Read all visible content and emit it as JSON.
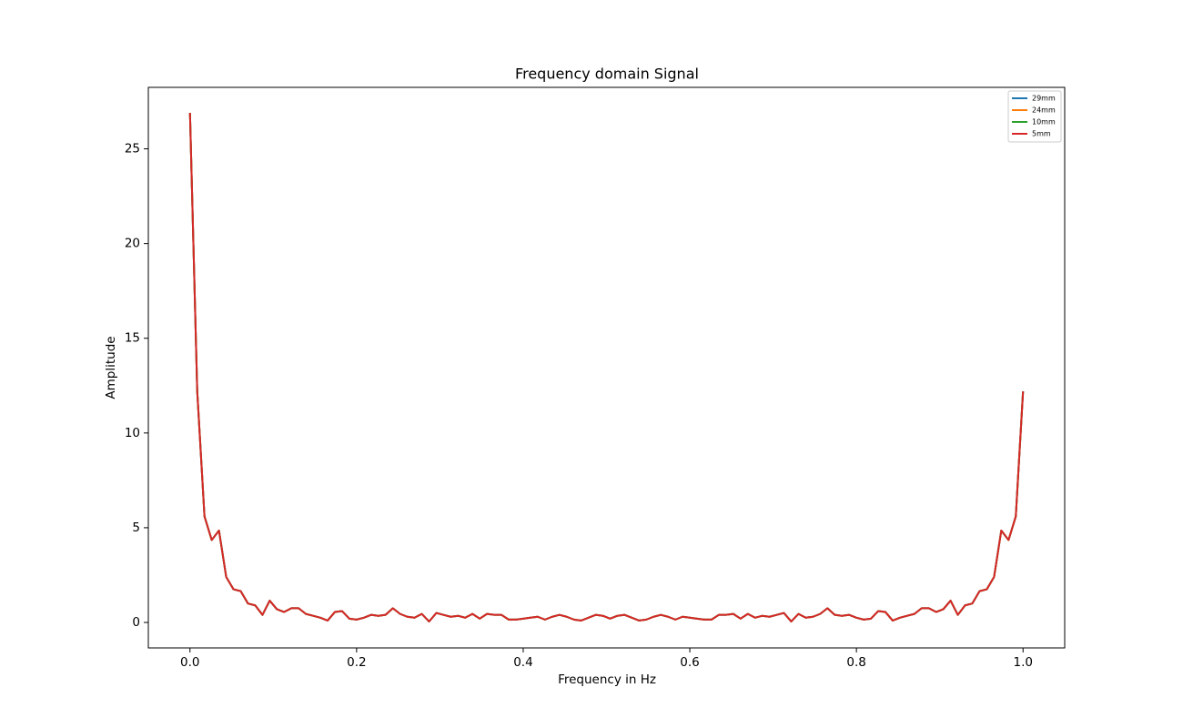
{
  "chart_data": {
    "type": "line",
    "title": "Frequency domain Signal",
    "x_label": "Frequency in Hz",
    "y_label": "Amplitude",
    "x": [
      0,
      0.0087,
      0.0174,
      0.0261,
      0.0348,
      0.0435,
      0.0522,
      0.0609,
      0.0696,
      0.0783,
      0.087,
      0.0957,
      0.1043,
      0.113,
      0.1217,
      0.1304,
      0.1391,
      0.1478,
      0.1565,
      0.1652,
      0.1739,
      0.1826,
      0.1913,
      0.2,
      0.2087,
      0.2174,
      0.2261,
      0.2348,
      0.2435,
      0.2522,
      0.2609,
      0.2696,
      0.2783,
      0.287,
      0.2957,
      0.3043,
      0.313,
      0.3217,
      0.3304,
      0.3391,
      0.3478,
      0.3565,
      0.3652,
      0.3739,
      0.3826,
      0.3913,
      0.4,
      0.4087,
      0.4174,
      0.4261,
      0.4348,
      0.4435,
      0.4522,
      0.4609,
      0.4696,
      0.4783,
      0.487,
      0.4957,
      0.5043,
      0.513,
      0.5217,
      0.5304,
      0.5391,
      0.5478,
      0.5565,
      0.5652,
      0.5739,
      0.5826,
      0.5913,
      0.6,
      0.6087,
      0.6174,
      0.6261,
      0.6348,
      0.6435,
      0.6522,
      0.6609,
      0.6696,
      0.6783,
      0.687,
      0.6957,
      0.7043,
      0.713,
      0.7217,
      0.7304,
      0.7391,
      0.7478,
      0.7565,
      0.7652,
      0.7739,
      0.7826,
      0.7913,
      0.8,
      0.8087,
      0.8174,
      0.8261,
      0.8348,
      0.8435,
      0.8522,
      0.8609,
      0.8696,
      0.8783,
      0.887,
      0.8957,
      0.9043,
      0.913,
      0.9217,
      0.9304,
      0.9391,
      0.9478,
      0.9565,
      0.9652,
      0.9739,
      0.9826,
      0.9913,
      1
    ],
    "series": [
      {
        "name": "29mm",
        "color": "#1f77b4",
        "values": [
          26.9,
          12.2,
          5.6,
          4.35,
          4.85,
          2.4,
          1.75,
          1.65,
          1.0,
          0.9,
          0.4,
          1.15,
          0.7,
          0.55,
          0.75,
          0.75,
          0.45,
          0.35,
          0.25,
          0.1,
          0.55,
          0.6,
          0.2,
          0.15,
          0.25,
          0.4,
          0.35,
          0.4,
          0.75,
          0.45,
          0.3,
          0.25,
          0.45,
          0.05,
          0.5,
          0.4,
          0.3,
          0.35,
          0.25,
          0.45,
          0.2,
          0.45,
          0.4,
          0.4,
          0.15,
          0.15,
          0.2,
          0.25,
          0.3,
          0.15,
          0.3,
          0.4,
          0.3,
          0.15,
          0.1,
          0.25,
          0.4,
          0.35,
          0.2,
          0.35,
          0.4,
          0.25,
          0.1,
          0.15,
          0.3,
          0.4,
          0.3,
          0.15,
          0.3,
          0.25,
          0.2,
          0.15,
          0.15,
          0.4,
          0.4,
          0.45,
          0.2,
          0.45,
          0.25,
          0.35,
          0.3,
          0.4,
          0.5,
          0.05,
          0.45,
          0.25,
          0.3,
          0.45,
          0.75,
          0.4,
          0.35,
          0.4,
          0.25,
          0.15,
          0.2,
          0.6,
          0.55,
          0.1,
          0.25,
          0.35,
          0.45,
          0.75,
          0.75,
          0.55,
          0.7,
          1.15,
          0.4,
          0.9,
          1.0,
          1.65,
          1.75,
          2.4,
          4.85,
          4.35,
          5.6,
          12.2
        ]
      },
      {
        "name": "24mm",
        "color": "#ff7f0e",
        "values": [
          26.9,
          12.2,
          5.6,
          4.35,
          4.85,
          2.4,
          1.75,
          1.65,
          1.0,
          0.9,
          0.4,
          1.15,
          0.7,
          0.55,
          0.75,
          0.75,
          0.45,
          0.35,
          0.25,
          0.1,
          0.55,
          0.6,
          0.2,
          0.15,
          0.25,
          0.4,
          0.35,
          0.4,
          0.75,
          0.45,
          0.3,
          0.25,
          0.45,
          0.05,
          0.5,
          0.4,
          0.3,
          0.35,
          0.25,
          0.45,
          0.2,
          0.45,
          0.4,
          0.4,
          0.15,
          0.15,
          0.2,
          0.25,
          0.3,
          0.15,
          0.3,
          0.4,
          0.3,
          0.15,
          0.1,
          0.25,
          0.4,
          0.35,
          0.2,
          0.35,
          0.4,
          0.25,
          0.1,
          0.15,
          0.3,
          0.4,
          0.3,
          0.15,
          0.3,
          0.25,
          0.2,
          0.15,
          0.15,
          0.4,
          0.4,
          0.45,
          0.2,
          0.45,
          0.25,
          0.35,
          0.3,
          0.4,
          0.5,
          0.05,
          0.45,
          0.25,
          0.3,
          0.45,
          0.75,
          0.4,
          0.35,
          0.4,
          0.25,
          0.15,
          0.2,
          0.6,
          0.55,
          0.1,
          0.25,
          0.35,
          0.45,
          0.75,
          0.75,
          0.55,
          0.7,
          1.15,
          0.4,
          0.9,
          1.0,
          1.65,
          1.75,
          2.4,
          4.85,
          4.35,
          5.6,
          12.2
        ]
      },
      {
        "name": "10mm",
        "color": "#2ca02c",
        "values": [
          26.9,
          12.2,
          5.6,
          4.35,
          4.85,
          2.4,
          1.75,
          1.65,
          1.0,
          0.9,
          0.4,
          1.15,
          0.7,
          0.55,
          0.75,
          0.75,
          0.45,
          0.35,
          0.25,
          0.1,
          0.55,
          0.6,
          0.2,
          0.15,
          0.25,
          0.4,
          0.35,
          0.4,
          0.75,
          0.45,
          0.3,
          0.25,
          0.45,
          0.05,
          0.5,
          0.4,
          0.3,
          0.35,
          0.25,
          0.45,
          0.2,
          0.45,
          0.4,
          0.4,
          0.15,
          0.15,
          0.2,
          0.25,
          0.3,
          0.15,
          0.3,
          0.4,
          0.3,
          0.15,
          0.1,
          0.25,
          0.4,
          0.35,
          0.2,
          0.35,
          0.4,
          0.25,
          0.1,
          0.15,
          0.3,
          0.4,
          0.3,
          0.15,
          0.3,
          0.25,
          0.2,
          0.15,
          0.15,
          0.4,
          0.4,
          0.45,
          0.2,
          0.45,
          0.25,
          0.35,
          0.3,
          0.4,
          0.5,
          0.05,
          0.45,
          0.25,
          0.3,
          0.45,
          0.75,
          0.4,
          0.35,
          0.4,
          0.25,
          0.15,
          0.2,
          0.6,
          0.55,
          0.1,
          0.25,
          0.35,
          0.45,
          0.75,
          0.75,
          0.55,
          0.7,
          1.15,
          0.4,
          0.9,
          1.0,
          1.65,
          1.75,
          2.4,
          4.85,
          4.35,
          5.6,
          12.2
        ]
      },
      {
        "name": "5mm",
        "color": "#d62728",
        "values": [
          26.9,
          12.2,
          5.6,
          4.35,
          4.85,
          2.4,
          1.75,
          1.65,
          1.0,
          0.9,
          0.4,
          1.15,
          0.7,
          0.55,
          0.75,
          0.75,
          0.45,
          0.35,
          0.25,
          0.1,
          0.55,
          0.6,
          0.2,
          0.15,
          0.25,
          0.4,
          0.35,
          0.4,
          0.75,
          0.45,
          0.3,
          0.25,
          0.45,
          0.05,
          0.5,
          0.4,
          0.3,
          0.35,
          0.25,
          0.45,
          0.2,
          0.45,
          0.4,
          0.4,
          0.15,
          0.15,
          0.2,
          0.25,
          0.3,
          0.15,
          0.3,
          0.4,
          0.3,
          0.15,
          0.1,
          0.25,
          0.4,
          0.35,
          0.2,
          0.35,
          0.4,
          0.25,
          0.1,
          0.15,
          0.3,
          0.4,
          0.3,
          0.15,
          0.3,
          0.25,
          0.2,
          0.15,
          0.15,
          0.4,
          0.4,
          0.45,
          0.2,
          0.45,
          0.25,
          0.35,
          0.3,
          0.4,
          0.5,
          0.05,
          0.45,
          0.25,
          0.3,
          0.45,
          0.75,
          0.4,
          0.35,
          0.4,
          0.25,
          0.15,
          0.2,
          0.6,
          0.55,
          0.1,
          0.25,
          0.35,
          0.45,
          0.75,
          0.75,
          0.55,
          0.7,
          1.15,
          0.4,
          0.9,
          1.0,
          1.65,
          1.75,
          2.4,
          4.85,
          4.35,
          5.6,
          12.2
        ]
      }
    ],
    "xlim": [
      -0.05,
      1.05
    ],
    "xticks": [
      {
        "value": 0,
        "label": "0.0"
      },
      {
        "value": 0.2,
        "label": "0.2"
      },
      {
        "value": 0.4,
        "label": "0.4"
      },
      {
        "value": 0.6,
        "label": "0.6"
      },
      {
        "value": 0.8,
        "label": "0.8"
      },
      {
        "value": 1,
        "label": "1.0"
      }
    ],
    "ylim": [
      -1.345,
      28.245
    ],
    "yticks": [
      0,
      5,
      10,
      15,
      20,
      25
    ],
    "grid": false,
    "legend": "upper right"
  }
}
